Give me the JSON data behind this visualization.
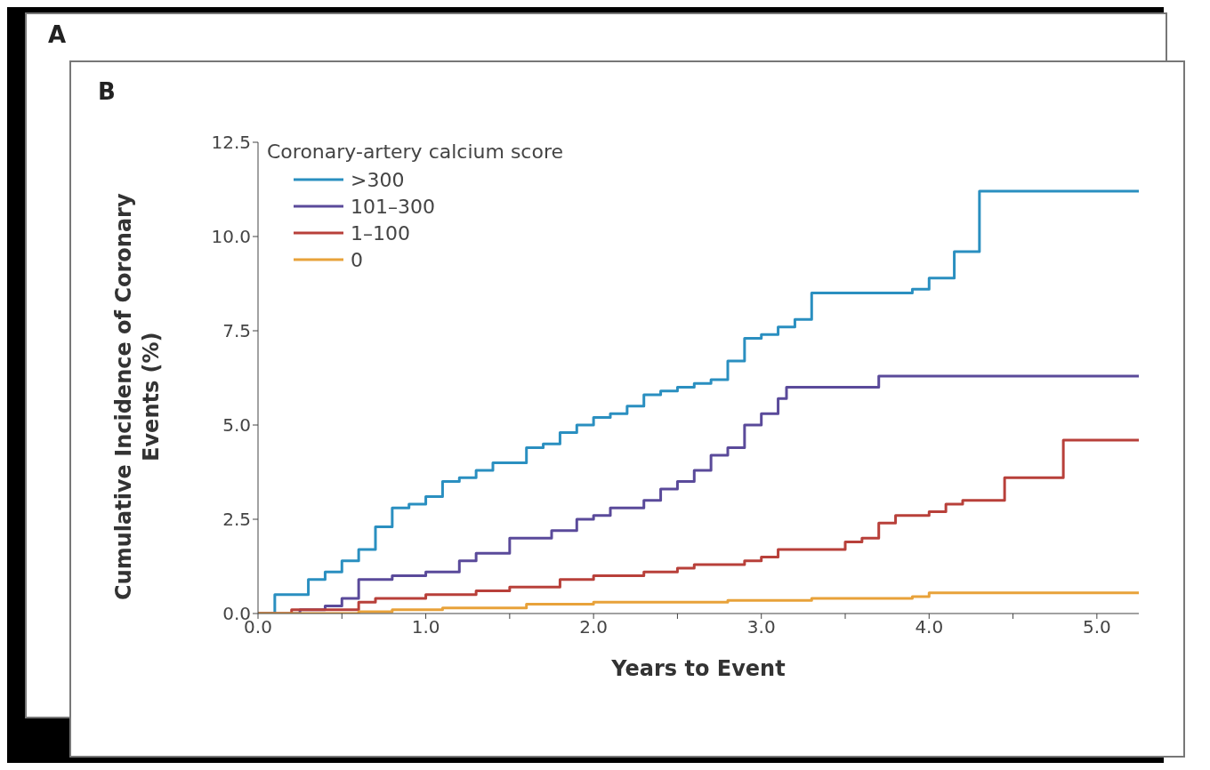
{
  "chart_data": {
    "type": "step",
    "title": "B",
    "annotations": [
      "A"
    ],
    "xlabel": "Years to Event",
    "ylabel": "Cumulative Incidence of Coronary Events (%)",
    "legend_title": "Coronary-artery calcium score",
    "legend": "top left",
    "grid": false,
    "marker": "none",
    "line_style": "solid",
    "xlim": [
      0,
      5.25
    ],
    "xticks": [
      {
        "value": 0,
        "label": "0.0"
      },
      {
        "value": 0.5,
        "label": null
      },
      {
        "value": 1,
        "label": "1.0"
      },
      {
        "value": 1.5,
        "label": null
      },
      {
        "value": 2,
        "label": "2.0"
      },
      {
        "value": 2.5,
        "label": null
      },
      {
        "value": 3,
        "label": "3.0"
      },
      {
        "value": 3.5,
        "label": null
      },
      {
        "value": 4,
        "label": "4.0"
      },
      {
        "value": 4.5,
        "label": null
      },
      {
        "value": 5,
        "label": "5.0"
      }
    ],
    "ylim": [
      0,
      12.5
    ],
    "yticks": [
      {
        "value": 0,
        "label": "0.0"
      },
      {
        "value": 2.5,
        "label": "2.5"
      },
      {
        "value": 5,
        "label": "5.0"
      },
      {
        "value": 7.5,
        "label": "7.5"
      },
      {
        "value": 10,
        "label": "10.0"
      },
      {
        "value": 12.5,
        "label": "12.5"
      }
    ],
    "series": [
      {
        "name": ">300",
        "color": "#2a8fc0",
        "x": [
          0,
          0.1,
          0.2,
          0.3,
          0.4,
          0.5,
          0.6,
          0.7,
          0.8,
          0.9,
          1.0,
          1.1,
          1.2,
          1.3,
          1.4,
          1.5,
          1.6,
          1.7,
          1.8,
          1.9,
          2.0,
          2.1,
          2.2,
          2.3,
          2.4,
          2.5,
          2.6,
          2.7,
          2.8,
          2.9,
          3.0,
          3.1,
          3.2,
          3.3,
          3.6,
          3.9,
          4.0,
          4.15,
          4.2,
          4.3,
          5.25
        ],
        "values": [
          0,
          0.5,
          0.5,
          0.9,
          1.1,
          1.4,
          1.7,
          2.3,
          2.8,
          2.9,
          3.1,
          3.5,
          3.6,
          3.8,
          4.0,
          4.0,
          4.4,
          4.5,
          4.8,
          5.0,
          5.2,
          5.3,
          5.5,
          5.8,
          5.9,
          6.0,
          6.1,
          6.2,
          6.7,
          7.3,
          7.4,
          7.6,
          7.8,
          8.5,
          8.5,
          8.6,
          8.9,
          9.6,
          9.6,
          11.2,
          11.2
        ]
      },
      {
        "name": "101–300",
        "color": "#5a4a9a",
        "x": [
          0,
          0.25,
          0.4,
          0.5,
          0.6,
          0.8,
          1.0,
          1.2,
          1.3,
          1.5,
          1.75,
          1.9,
          2.0,
          2.1,
          2.3,
          2.4,
          2.5,
          2.6,
          2.7,
          2.8,
          2.9,
          3.0,
          3.1,
          3.15,
          3.7,
          5.25
        ],
        "values": [
          0,
          0.1,
          0.2,
          0.4,
          0.9,
          1.0,
          1.1,
          1.4,
          1.6,
          2.0,
          2.2,
          2.5,
          2.6,
          2.8,
          3.0,
          3.3,
          3.5,
          3.8,
          4.2,
          4.4,
          5.0,
          5.3,
          5.7,
          6.0,
          6.3,
          6.3
        ]
      },
      {
        "name": "1–100",
        "color": "#b8403a",
        "x": [
          0,
          0.2,
          0.6,
          0.7,
          1.0,
          1.3,
          1.5,
          1.8,
          2.0,
          2.3,
          2.5,
          2.6,
          2.9,
          3.0,
          3.1,
          3.5,
          3.6,
          3.7,
          3.8,
          4.0,
          4.1,
          4.2,
          4.45,
          4.8,
          5.25
        ],
        "values": [
          0,
          0.1,
          0.3,
          0.4,
          0.5,
          0.6,
          0.7,
          0.9,
          1.0,
          1.1,
          1.2,
          1.3,
          1.4,
          1.5,
          1.7,
          1.9,
          2.0,
          2.4,
          2.6,
          2.7,
          2.9,
          3.0,
          3.6,
          4.6,
          4.6
        ]
      },
      {
        "name": "0",
        "color": "#e8a23a",
        "x": [
          0,
          0.6,
          0.8,
          1.1,
          1.6,
          2.0,
          2.8,
          3.3,
          3.9,
          4.0,
          5.25
        ],
        "values": [
          0,
          0.05,
          0.1,
          0.15,
          0.25,
          0.3,
          0.35,
          0.4,
          0.45,
          0.55,
          0.55
        ]
      }
    ]
  }
}
